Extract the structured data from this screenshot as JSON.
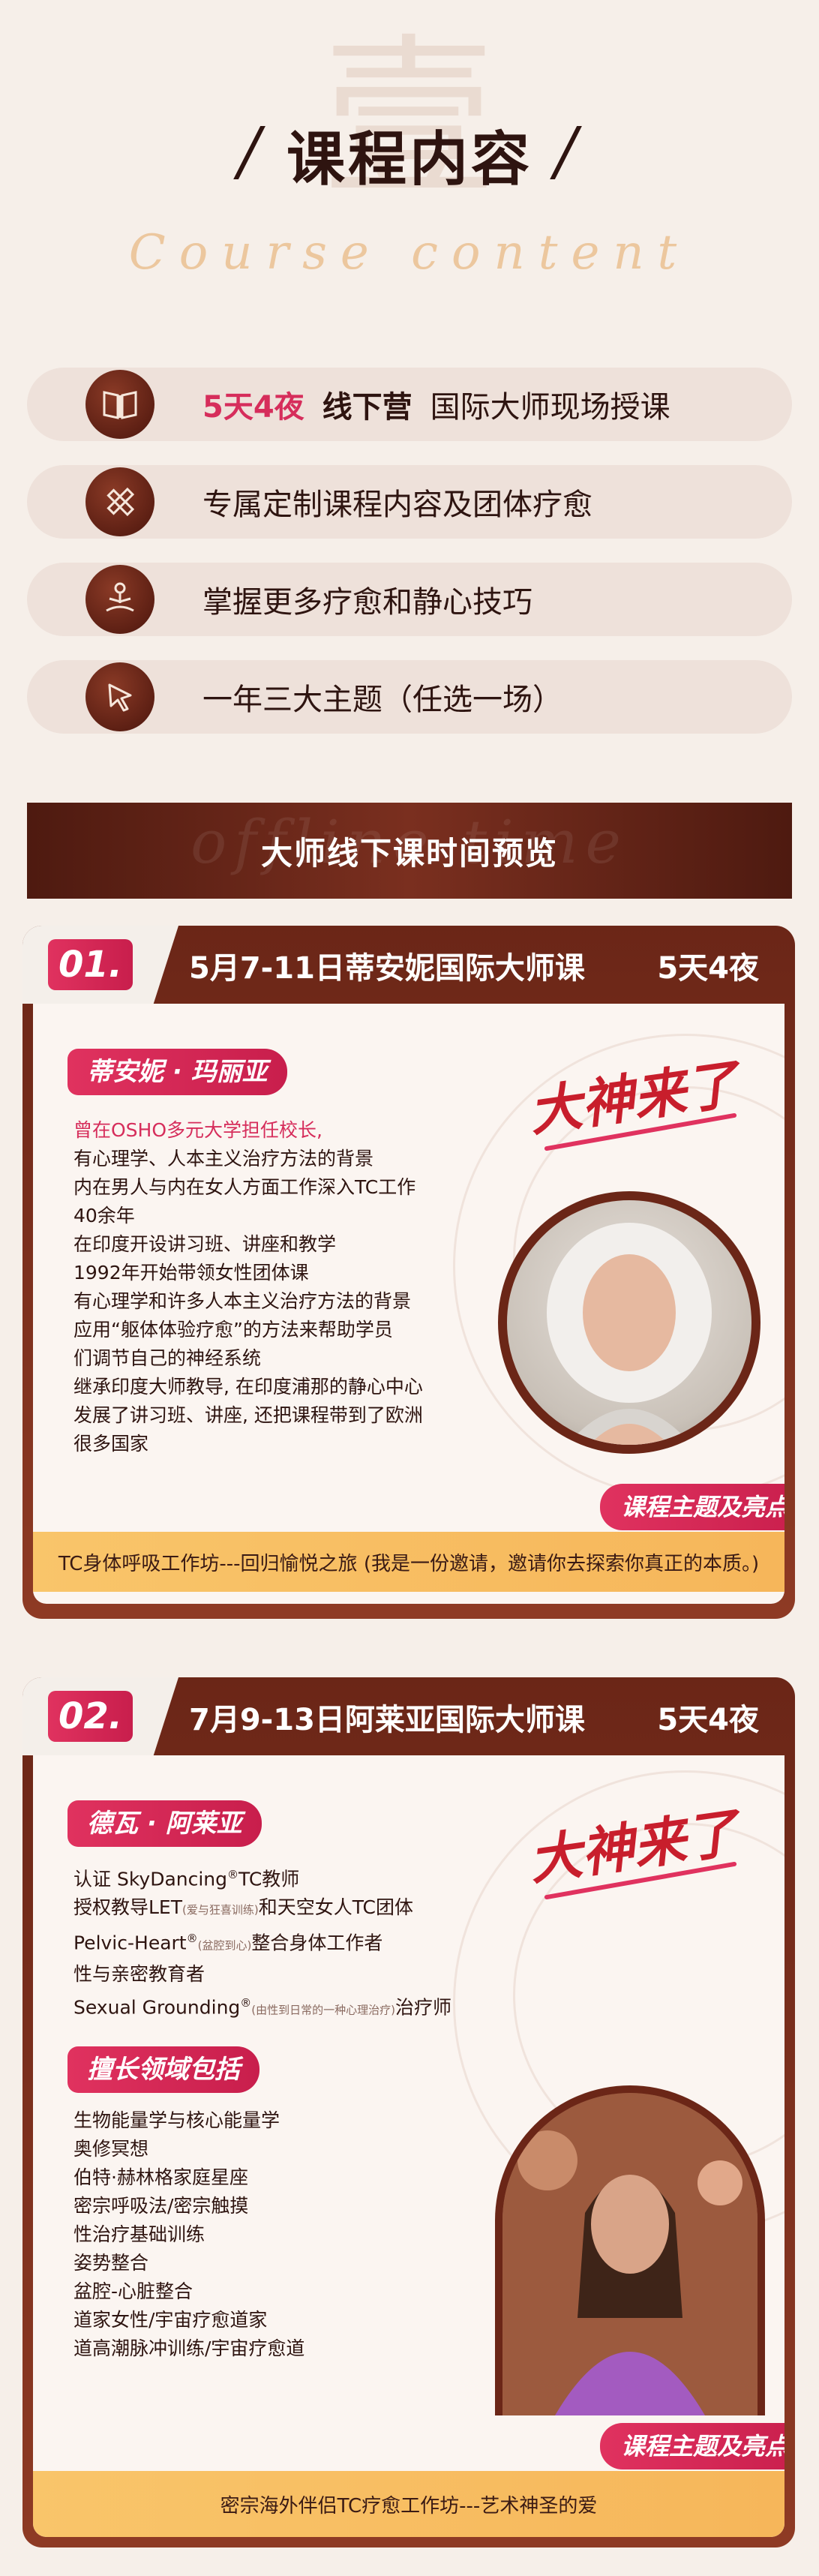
{
  "header": {
    "watermark_char": "壹",
    "title": "课程内容",
    "script_subtitle": "Course content"
  },
  "features": [
    {
      "icon": "book-icon",
      "highlight": "5天4夜",
      "bold": "线下营",
      "text": "国际大师现场授课"
    },
    {
      "icon": "pencil-ruler-icon",
      "highlight": "",
      "bold": "",
      "text": "专属定制课程内容及团体疗愈"
    },
    {
      "icon": "meditation-icon",
      "highlight": "",
      "bold": "",
      "text": "掌握更多疗愈和静心技巧"
    },
    {
      "icon": "cursor-icon",
      "highlight": "",
      "bold": "",
      "text": "一年三大主题（任选一场）"
    }
  ],
  "section_banner": {
    "watermark": "offline time",
    "title": "大师线下课时间预览"
  },
  "courses": [
    {
      "number": "01.",
      "date_title": "5月7-11日蒂安妮国际大师课",
      "days": "5天4夜",
      "teacher_name": "蒂安妮 · 玛丽亚",
      "slogan": "大神来了",
      "lead_line": "曾在OSHO多元大学担任校长,",
      "lines": [
        "有心理学、人本主义治疗方法的背景",
        "内在男人与内在女人方面工作深入TC工作",
        "40余年",
        "在印度开设讲习班、讲座和教学",
        "1992年开始带领女性团体课",
        "有心理学和许多人本主义治疗方法的背景",
        "应用“躯体体验疗愈”的方法来帮助学员",
        "们调节自己的神经系统",
        "继承印度大师教导, 在印度浦那的静心中心",
        "发展了讲习班、讲座, 还把课程带到了欧洲",
        "很多国家"
      ],
      "highlight_tag": "课程主题及亮点",
      "bottom_bar": "TC身体呼吸工作坊---回归愉悦之旅 (我是一份邀请，邀请你去探索你真正的本质。)"
    },
    {
      "number": "02.",
      "date_title": "7月9-13日阿莱亚国际大师课",
      "days": "5天4夜",
      "teacher_name": "德瓦 · 阿莱亚",
      "slogan": "大神来了",
      "cred": {
        "l1": "认证 SkyDancing",
        "l1_sup": "®",
        "l1_end": "TC教师",
        "l2": "授权教导LET",
        "l2_small": "(爱与狂喜训练)",
        "l2_end": "和天空女人TC团体",
        "l3": "Pelvic-Heart",
        "l3_sup": "®",
        "l3_small": "(盆腔到心)",
        "l3_end": "整合身体工作者",
        "l4": "性与亲密教育者",
        "l5": "Sexual Grounding",
        "l5_sup": "®",
        "l5_small": "(由性到日常的一种心理治疗)",
        "l5_end": "治疗师"
      },
      "expertise_tag": "擅长领域包括",
      "expertise": [
        "生物能量学与核心能量学",
        "奥修冥想",
        "伯特·赫林格家庭星座",
        "密宗呼吸法/密宗触摸",
        "性治疗基础训练",
        "姿势整合",
        "盆腔-心脏整合",
        "道家女性/宇宙疗愈道家",
        "道高潮脉冲训练/宇宙疗愈道"
      ],
      "highlight_tag": "课程主题及亮点",
      "bottom_bar": "密宗海外伴侣TC疗愈工作坊---艺术神圣的爱"
    }
  ]
}
